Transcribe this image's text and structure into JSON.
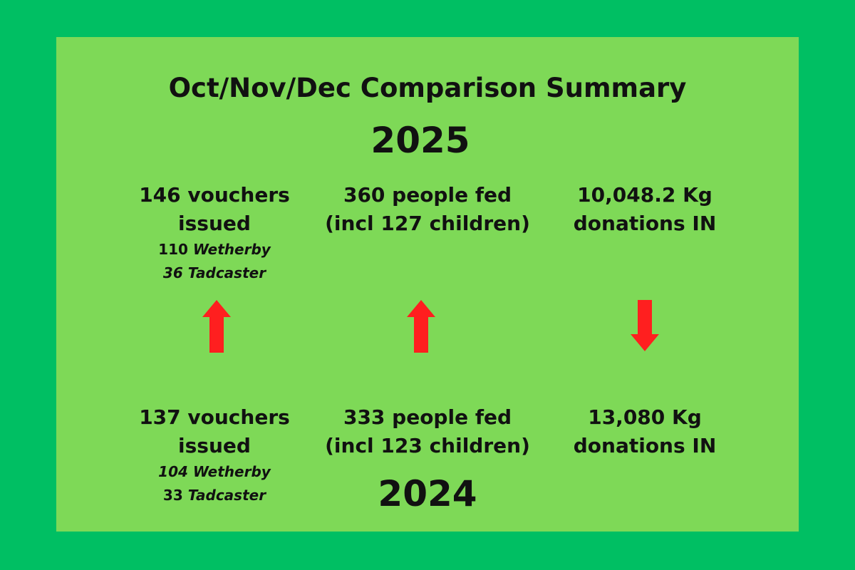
{
  "title": "Oct/Nov/Dec Comparison Summary",
  "year_current": "2025",
  "year_previous": "2024",
  "current": {
    "vouchers": {
      "line1": "146 vouchers",
      "line2": "issued",
      "wetherby_count": "110",
      "wetherby_label": "Wetherby",
      "tadcaster_count": "36",
      "tadcaster_label": "Tadcaster"
    },
    "people": {
      "line1": "360 people fed",
      "line2": "(incl 127 children)"
    },
    "donations": {
      "line1": "10,048.2 Kg",
      "line2": "donations IN"
    }
  },
  "previous": {
    "vouchers": {
      "line1": "137 vouchers",
      "line2": "issued",
      "wetherby_count": "104",
      "wetherby_label": "Wetherby",
      "tadcaster_count": "33",
      "tadcaster_label": "Tadcaster"
    },
    "people": {
      "line1": "333 people fed",
      "line2": "(incl 123 children)"
    },
    "donations": {
      "line1": "13,080 Kg",
      "line2": "donations IN"
    }
  },
  "arrows": [
    {
      "metric": "vouchers",
      "direction": "up",
      "icon": "arrow-up-icon",
      "color": "#ff1f1f"
    },
    {
      "metric": "people",
      "direction": "up",
      "icon": "arrow-up-icon",
      "color": "#ff1f1f"
    },
    {
      "metric": "donations",
      "direction": "down",
      "icon": "arrow-down-icon",
      "color": "#ff1f1f"
    }
  ],
  "colors": {
    "background": "#00bf63",
    "panel": "#7ed957",
    "text": "#111111",
    "arrow": "#ff1f1f"
  }
}
